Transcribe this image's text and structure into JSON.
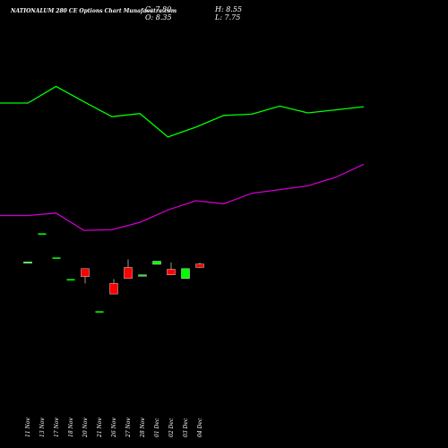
{
  "header": {
    "title": "NATIONALUM 280 CE Options Chart Munafasutra.com",
    "close": "C: 7.80",
    "high": "H: 8.55",
    "open": "O: 8.35",
    "low": "L: 7.75"
  },
  "colors": {
    "background": "#000000",
    "upper_line": "#00ff00",
    "lower_line": "#cc00cc",
    "bullish": "#00ff00",
    "bearish": "#ff0000",
    "wick": "#ffffff",
    "text": "#ffffff"
  },
  "chart_data": {
    "type": "candlestick",
    "categories": [
      "11 Nov",
      "13 Nov",
      "17 Nov",
      "18 Nov",
      "20 Nov",
      "21 Nov",
      "26 Nov",
      "27 Nov",
      "28 Nov",
      "01 Dec",
      "02 Dec",
      "03 Dec",
      "04 Dec"
    ],
    "candles": [
      {
        "open": 8.5,
        "high": 8.7,
        "low": 8.45,
        "close": 8.7,
        "direction": "up"
      },
      {
        "open": 13.2,
        "high": 13.2,
        "low": 13.2,
        "close": 13.2,
        "direction": "flat"
      },
      {
        "open": 9.3,
        "high": 9.3,
        "low": 9.3,
        "close": 9.3,
        "direction": "flat"
      },
      {
        "open": 5.8,
        "high": 5.8,
        "low": 5.8,
        "close": 5.8,
        "direction": "flat"
      },
      {
        "open": 7.6,
        "high": 7.6,
        "low": 5.2,
        "close": 6.3,
        "direction": "down"
      },
      {
        "open": 0.6,
        "high": 0.6,
        "low": 0.6,
        "close": 0.6,
        "direction": "flat"
      },
      {
        "open": 5.2,
        "high": 5.9,
        "low": 3.5,
        "close": 3.5,
        "direction": "down"
      },
      {
        "open": 7.8,
        "high": 9.1,
        "low": 6.0,
        "close": 6.0,
        "direction": "down"
      },
      {
        "open": 6.4,
        "high": 6.6,
        "low": 6.4,
        "close": 6.6,
        "direction": "up"
      },
      {
        "open": 8.3,
        "high": 8.8,
        "low": 8.3,
        "close": 8.8,
        "direction": "up"
      },
      {
        "open": 7.5,
        "high": 8.6,
        "low": 6.6,
        "close": 6.6,
        "direction": "down"
      },
      {
        "open": 6.0,
        "high": 7.6,
        "low": 6.0,
        "close": 7.6,
        "direction": "up"
      },
      {
        "open": 8.35,
        "high": 8.55,
        "low": 7.75,
        "close": 7.8,
        "direction": "down"
      }
    ],
    "upper_line": [
      34.4,
      34.4,
      37.1,
      34.6,
      32.2,
      32.7,
      28.9,
      30.5,
      32.4,
      32.6,
      33.9,
      32.8,
      33.3,
      33.8
    ],
    "lower_line": [
      16.2,
      16.2,
      16.6,
      13.8,
      13.9,
      15.1,
      17.1,
      18.6,
      18.1,
      19.8,
      20.4,
      21.0,
      22.4,
      24.5
    ],
    "ylim": [
      -12,
      46
    ]
  }
}
